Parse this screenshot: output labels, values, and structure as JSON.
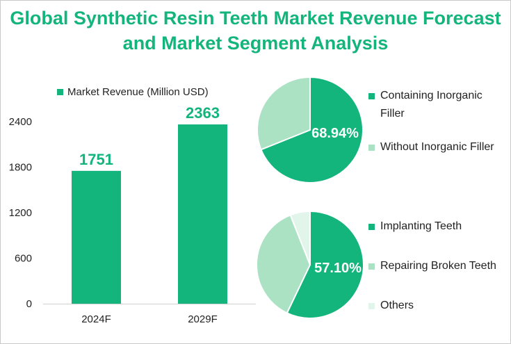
{
  "title": "Global Synthetic Resin Teeth Market Revenue Forecast and Market Segment Analysis",
  "colors": {
    "primary": "#14b47d",
    "light": "#abe2c4",
    "pale": "#e2f5ea",
    "text": "#222222"
  },
  "chart_data": [
    {
      "type": "bar",
      "categories": [
        "2024F",
        "2029F"
      ],
      "series": [
        {
          "name": "Market Revenue (Million USD)",
          "values": [
            1751,
            2363
          ]
        }
      ],
      "ylim": [
        0,
        2400
      ],
      "yticks": [
        "0",
        "600",
        "1200",
        "1800",
        "2400"
      ],
      "data_labels": [
        "1751",
        "2363"
      ],
      "legend": "top"
    },
    {
      "type": "pie",
      "labels": [
        "Containing Inorganic Filler",
        "Without Inorganic Filler"
      ],
      "values": [
        68.94,
        31.06
      ],
      "data_label": "68.94%",
      "legend": "right"
    },
    {
      "type": "pie",
      "labels": [
        "Implanting Teeth",
        "Repairing Broken Teeth",
        "Others"
      ],
      "values": [
        57.1,
        36.9,
        6.0
      ],
      "data_label": "57.10%",
      "legend": "right"
    }
  ]
}
